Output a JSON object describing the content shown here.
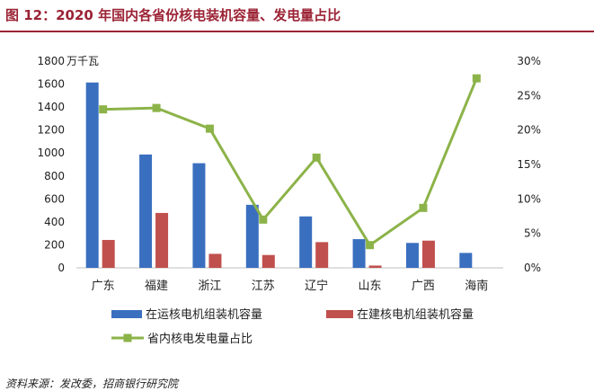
{
  "figure": {
    "title": "图 12：2020 年国内各省份核电装机容量、发电量占比",
    "source": "资料来源：发改委，招商银行研究院"
  },
  "chart_data": {
    "type": "bar",
    "categories": [
      "广东",
      "福建",
      "浙江",
      "江苏",
      "辽宁",
      "山东",
      "广西",
      "海南"
    ],
    "left_axis": {
      "unit_label": "万千瓦",
      "range": [
        0,
        1800
      ],
      "ticks": [
        0,
        200,
        400,
        600,
        800,
        1000,
        1200,
        1400,
        1600,
        1800
      ]
    },
    "right_axis": {
      "range": [
        0,
        30
      ],
      "ticks": [
        0,
        5,
        10,
        15,
        20,
        25,
        30
      ],
      "tick_labels": [
        "0%",
        "5%",
        "10%",
        "15%",
        "20%",
        "25%",
        "30%"
      ]
    },
    "series": [
      {
        "name": "在运核电机组装机容量",
        "type": "bar",
        "axis": "left",
        "color": "#3a6fbf",
        "values": [
          1614,
          987,
          911,
          549,
          448,
          250,
          217,
          130
        ]
      },
      {
        "name": "在建核电机组装机容量",
        "type": "bar",
        "axis": "left",
        "color": "#c0504d",
        "values": [
          243,
          478,
          122,
          112,
          224,
          20,
          237,
          0
        ]
      },
      {
        "name": "省内核电发电量占比",
        "type": "line",
        "axis": "right",
        "color": "#8cb349",
        "values": [
          23.0,
          23.2,
          20.2,
          7.0,
          16.0,
          3.3,
          8.7,
          27.5
        ]
      }
    ],
    "legend_position": "bottom",
    "grid": false
  }
}
